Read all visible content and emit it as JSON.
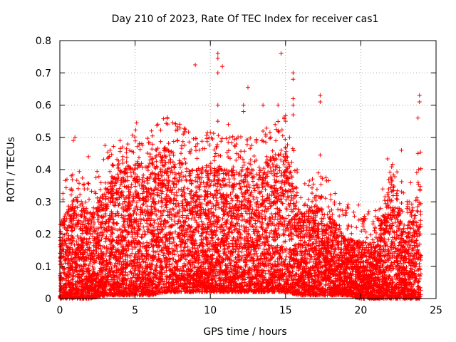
{
  "chart_data": {
    "type": "scatter",
    "title": "Day 210 of 2023, Rate Of TEC Index for receiver cas1",
    "xlabel": "GPS time / hours",
    "ylabel": "ROTI / TECUs",
    "xlim": [
      0,
      25
    ],
    "ylim": [
      0,
      0.8
    ],
    "xticks": [
      "0",
      "5",
      "10",
      "15",
      "20",
      "25"
    ],
    "yticks": [
      "0",
      "0.1",
      "0.2",
      "0.3",
      "0.4",
      "0.5",
      "0.6",
      "0.7",
      "0.8"
    ],
    "grid": true,
    "marker": "+",
    "color": "#ff0000",
    "series": [
      {
        "name": "ROTI",
        "notable_points": [
          {
            "x": 9.0,
            "y": 0.725
          },
          {
            "x": 10.5,
            "y": 0.76
          },
          {
            "x": 10.5,
            "y": 0.745
          },
          {
            "x": 10.5,
            "y": 0.7
          },
          {
            "x": 10.5,
            "y": 0.6
          },
          {
            "x": 10.5,
            "y": 0.55
          },
          {
            "x": 10.8,
            "y": 0.72
          },
          {
            "x": 12.5,
            "y": 0.655
          },
          {
            "x": 14.7,
            "y": 0.76
          },
          {
            "x": 15.5,
            "y": 0.7
          },
          {
            "x": 15.5,
            "y": 0.68
          },
          {
            "x": 15.5,
            "y": 0.62
          },
          {
            "x": 15.5,
            "y": 0.6
          },
          {
            "x": 17.3,
            "y": 0.63
          },
          {
            "x": 17.3,
            "y": 0.61
          },
          {
            "x": 23.9,
            "y": 0.63
          },
          {
            "x": 23.9,
            "y": 0.61
          },
          {
            "x": 23.8,
            "y": 0.56
          },
          {
            "x": 12.2,
            "y": 0.6
          },
          {
            "x": 12.2,
            "y": 0.58
          },
          {
            "x": 13.5,
            "y": 0.6
          },
          {
            "x": 14.5,
            "y": 0.6
          },
          {
            "x": 5.1,
            "y": 0.545
          },
          {
            "x": 8.2,
            "y": 0.51
          },
          {
            "x": 10.0,
            "y": 0.515
          },
          {
            "x": 11.2,
            "y": 0.54
          },
          {
            "x": 15.0,
            "y": 0.55
          },
          {
            "x": 15.5,
            "y": 0.57
          },
          {
            "x": 0.9,
            "y": 0.49
          },
          {
            "x": 1.0,
            "y": 0.5
          },
          {
            "x": 22.7,
            "y": 0.46
          },
          {
            "x": 23.8,
            "y": 0.45
          },
          {
            "x": 17.3,
            "y": 0.445
          },
          {
            "x": 1.9,
            "y": 0.44
          },
          {
            "x": 3.0,
            "y": 0.475
          },
          {
            "x": 4.0,
            "y": 0.49
          }
        ],
        "envelope": [
          {
            "x": 0.0,
            "low": 0.0,
            "typical_high": 0.22
          },
          {
            "x": 1.0,
            "low": 0.0,
            "typical_high": 0.3
          },
          {
            "x": 2.0,
            "low": 0.0,
            "typical_high": 0.25
          },
          {
            "x": 3.0,
            "low": 0.01,
            "typical_high": 0.33
          },
          {
            "x": 4.0,
            "low": 0.01,
            "typical_high": 0.38
          },
          {
            "x": 5.0,
            "low": 0.01,
            "typical_high": 0.41
          },
          {
            "x": 6.0,
            "low": 0.01,
            "typical_high": 0.4
          },
          {
            "x": 7.0,
            "low": 0.02,
            "typical_high": 0.45
          },
          {
            "x": 8.0,
            "low": 0.02,
            "typical_high": 0.42
          },
          {
            "x": 9.0,
            "low": 0.02,
            "typical_high": 0.38
          },
          {
            "x": 10.0,
            "low": 0.02,
            "typical_high": 0.4
          },
          {
            "x": 11.0,
            "low": 0.02,
            "typical_high": 0.38
          },
          {
            "x": 12.0,
            "low": 0.02,
            "typical_high": 0.4
          },
          {
            "x": 13.0,
            "low": 0.02,
            "typical_high": 0.38
          },
          {
            "x": 14.0,
            "low": 0.02,
            "typical_high": 0.42
          },
          {
            "x": 15.0,
            "low": 0.02,
            "typical_high": 0.45
          },
          {
            "x": 16.0,
            "low": 0.01,
            "typical_high": 0.25
          },
          {
            "x": 17.0,
            "low": 0.01,
            "typical_high": 0.28
          },
          {
            "x": 18.0,
            "low": 0.01,
            "typical_high": 0.25
          },
          {
            "x": 19.0,
            "low": 0.01,
            "typical_high": 0.18
          },
          {
            "x": 20.0,
            "low": 0.0,
            "typical_high": 0.17
          },
          {
            "x": 21.0,
            "low": 0.0,
            "typical_high": 0.16
          },
          {
            "x": 22.0,
            "low": 0.0,
            "typical_high": 0.36
          },
          {
            "x": 23.0,
            "low": 0.0,
            "typical_high": 0.2
          },
          {
            "x": 24.0,
            "low": 0.0,
            "typical_high": 0.35
          }
        ]
      }
    ]
  }
}
